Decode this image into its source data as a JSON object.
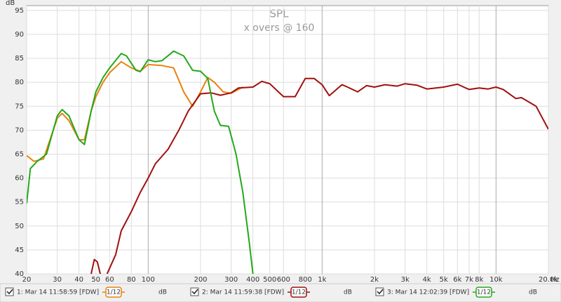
{
  "chart_data": {
    "type": "line",
    "title": "SPL",
    "subtitle": "x overs @ 160",
    "y_label": "dB",
    "x_label": "Hz",
    "xscale": "log",
    "grid": true,
    "xlim": [
      20,
      20000
    ],
    "ylim": [
      40,
      96
    ],
    "yticks": [
      40,
      45,
      50,
      55,
      60,
      65,
      70,
      75,
      80,
      85,
      90,
      95
    ],
    "xticks": [
      20,
      30,
      40,
      50,
      60,
      80,
      100,
      200,
      300,
      400,
      500,
      600,
      800,
      {
        "value": 1000,
        "label": "1k"
      },
      {
        "value": 2000,
        "label": "2k"
      },
      {
        "value": 3000,
        "label": "3k"
      },
      {
        "value": 4000,
        "label": "4k"
      },
      {
        "value": 5000,
        "label": "5k"
      },
      {
        "value": 6000,
        "label": "6k"
      },
      {
        "value": 7000,
        "label": "7k"
      },
      {
        "value": 8000,
        "label": "8k"
      },
      {
        "value": 10000,
        "label": "10k"
      },
      {
        "value": 20000,
        "label": "20.0k"
      }
    ],
    "series": [
      {
        "name": "1: Mar 14 11:58:59 [FDW]",
        "smoothing": "1/12",
        "unit": "dB",
        "color": "#e8820e",
        "x": [
          20,
          22,
          25,
          30,
          32,
          35,
          40,
          43,
          47,
          50,
          55,
          60,
          70,
          80,
          90,
          100,
          120,
          140,
          160,
          180,
          200,
          220,
          240,
          270,
          300,
          330,
          350
        ],
        "values": [
          64.7,
          63.5,
          64,
          72.5,
          73.5,
          72,
          68,
          68,
          74,
          77,
          80,
          82,
          84.3,
          83,
          82.3,
          83.7,
          83.5,
          83,
          78,
          75,
          78,
          81,
          80,
          78,
          77.7,
          78.5,
          79
        ]
      },
      {
        "name": "2: Mar 14 11:59:38 [FDW]",
        "smoothing": "1/12",
        "unit": "dB",
        "color": "#a0100d",
        "x": [
          47,
          49,
          51,
          53,
          56,
          58,
          65,
          70,
          80,
          90,
          100,
          110,
          130,
          150,
          170,
          200,
          230,
          260,
          300,
          330,
          400,
          450,
          500,
          600,
          700,
          800,
          900,
          1000,
          1100,
          1300,
          1400,
          1600,
          1800,
          2000,
          2300,
          2700,
          3000,
          3500,
          4000,
          5000,
          6000,
          7000,
          8000,
          9000,
          10000,
          11000,
          13000,
          14000,
          17000,
          20000
        ],
        "values": [
          40,
          43,
          42.5,
          40,
          null,
          40,
          44,
          49,
          53,
          57,
          60,
          63,
          66,
          70,
          74,
          77.6,
          77.8,
          77.3,
          77.8,
          78.8,
          79,
          80.2,
          79.7,
          77,
          77,
          80.8,
          80.8,
          79.5,
          77.2,
          79.5,
          79,
          78,
          79.3,
          79,
          79.5,
          79.2,
          79.7,
          79.4,
          78.6,
          79,
          79.6,
          78.5,
          78.8,
          78.6,
          79,
          78.5,
          76.6,
          76.8,
          75,
          70.2
        ]
      },
      {
        "name": "3: Mar 14 12:02:39 [FDW]",
        "smoothing": "1/12",
        "unit": "dB",
        "color": "#24a81c",
        "x": [
          20,
          21,
          23,
          26,
          30,
          32,
          35,
          40,
          43,
          47,
          50,
          55,
          60,
          70,
          75,
          85,
          90,
          100,
          110,
          120,
          140,
          160,
          180,
          200,
          220,
          240,
          260,
          290,
          320,
          350,
          380,
          400
        ],
        "values": [
          54.7,
          62,
          63.5,
          65,
          73,
          74.3,
          73,
          68,
          67,
          74,
          78,
          81,
          83,
          86,
          85.5,
          82.5,
          82.2,
          84.7,
          84.3,
          84.5,
          86.5,
          85.5,
          82.5,
          82.3,
          80.8,
          74,
          71,
          70.8,
          65,
          57,
          47,
          40
        ]
      }
    ]
  }
}
